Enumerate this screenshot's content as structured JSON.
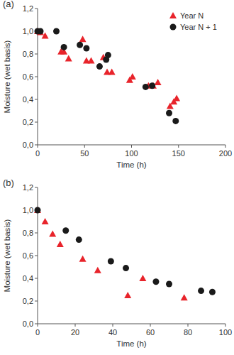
{
  "chart_data": [
    {
      "type": "scatter",
      "title": "(a)",
      "xlabel": "Time (h)",
      "ylabel": "Moisture (wet basis)",
      "xlim": [
        0,
        200
      ],
      "xticks": [
        0,
        50,
        100,
        150,
        200
      ],
      "ylim": [
        0,
        1.2
      ],
      "yticks": [
        {
          "value": 0,
          "label": "0,0"
        },
        {
          "value": 0.2,
          "label": "0,2"
        },
        {
          "value": 0.4,
          "label": "0,4"
        },
        {
          "value": 0.6,
          "label": "0,6"
        },
        {
          "value": 0.8,
          "label": "0,8"
        },
        {
          "value": 1.0,
          "label": "1,0"
        },
        {
          "value": 1.2,
          "label": "1,2"
        }
      ],
      "grid": false,
      "legend": "upper right",
      "series": [
        {
          "name": "Year N",
          "color": "#e8242b",
          "marker": "triangle",
          "x": [
            0,
            3,
            8,
            25,
            28,
            33,
            48,
            52,
            57,
            70,
            74,
            79,
            98,
            101,
            118,
            123,
            128,
            141,
            145,
            148
          ],
          "values": [
            1.0,
            0.99,
            0.96,
            0.82,
            0.82,
            0.76,
            0.93,
            0.74,
            0.74,
            0.77,
            0.64,
            0.64,
            0.57,
            0.6,
            0.52,
            0.52,
            0.55,
            0.34,
            0.38,
            0.41
          ]
        },
        {
          "name": "Year N + 1",
          "color": "#1a1a1a",
          "marker": "circle",
          "x": [
            0,
            3,
            20,
            28,
            45,
            52,
            66,
            73,
            75,
            115,
            122,
            140,
            147
          ],
          "values": [
            1.0,
            1.0,
            1.0,
            0.86,
            0.88,
            0.85,
            0.69,
            0.75,
            0.79,
            0.51,
            0.52,
            0.28,
            0.21
          ]
        }
      ]
    },
    {
      "type": "scatter",
      "title": "(b)",
      "xlabel": "Time (h)",
      "ylabel": "Moisture (wet basis)",
      "xlim": [
        0,
        100
      ],
      "xticks": [
        0,
        20,
        40,
        60,
        80,
        100
      ],
      "ylim": [
        0,
        1.2
      ],
      "yticks": [
        {
          "value": 0,
          "label": "0,0"
        },
        {
          "value": 0.2,
          "label": "0,2"
        },
        {
          "value": 0.4,
          "label": "0,4"
        },
        {
          "value": 0.6,
          "label": "0,6"
        },
        {
          "value": 0.8,
          "label": "0,8"
        },
        {
          "value": 1.0,
          "label": "1,0"
        },
        {
          "value": 1.2,
          "label": "1,2"
        }
      ],
      "grid": false,
      "series": [
        {
          "color": "#e8242b",
          "marker": "triangle",
          "x": [
            0,
            4,
            8,
            12,
            24,
            32,
            48,
            56,
            78
          ],
          "values": [
            1.0,
            0.9,
            0.79,
            0.7,
            0.57,
            0.47,
            0.25,
            0.4,
            0.23
          ]
        },
        {
          "color": "#1a1a1a",
          "marker": "circle",
          "x": [
            0,
            15,
            22,
            39,
            47,
            63,
            70,
            87,
            93
          ],
          "values": [
            1.0,
            0.82,
            0.74,
            0.55,
            0.49,
            0.37,
            0.35,
            0.29,
            0.28
          ]
        }
      ]
    }
  ]
}
